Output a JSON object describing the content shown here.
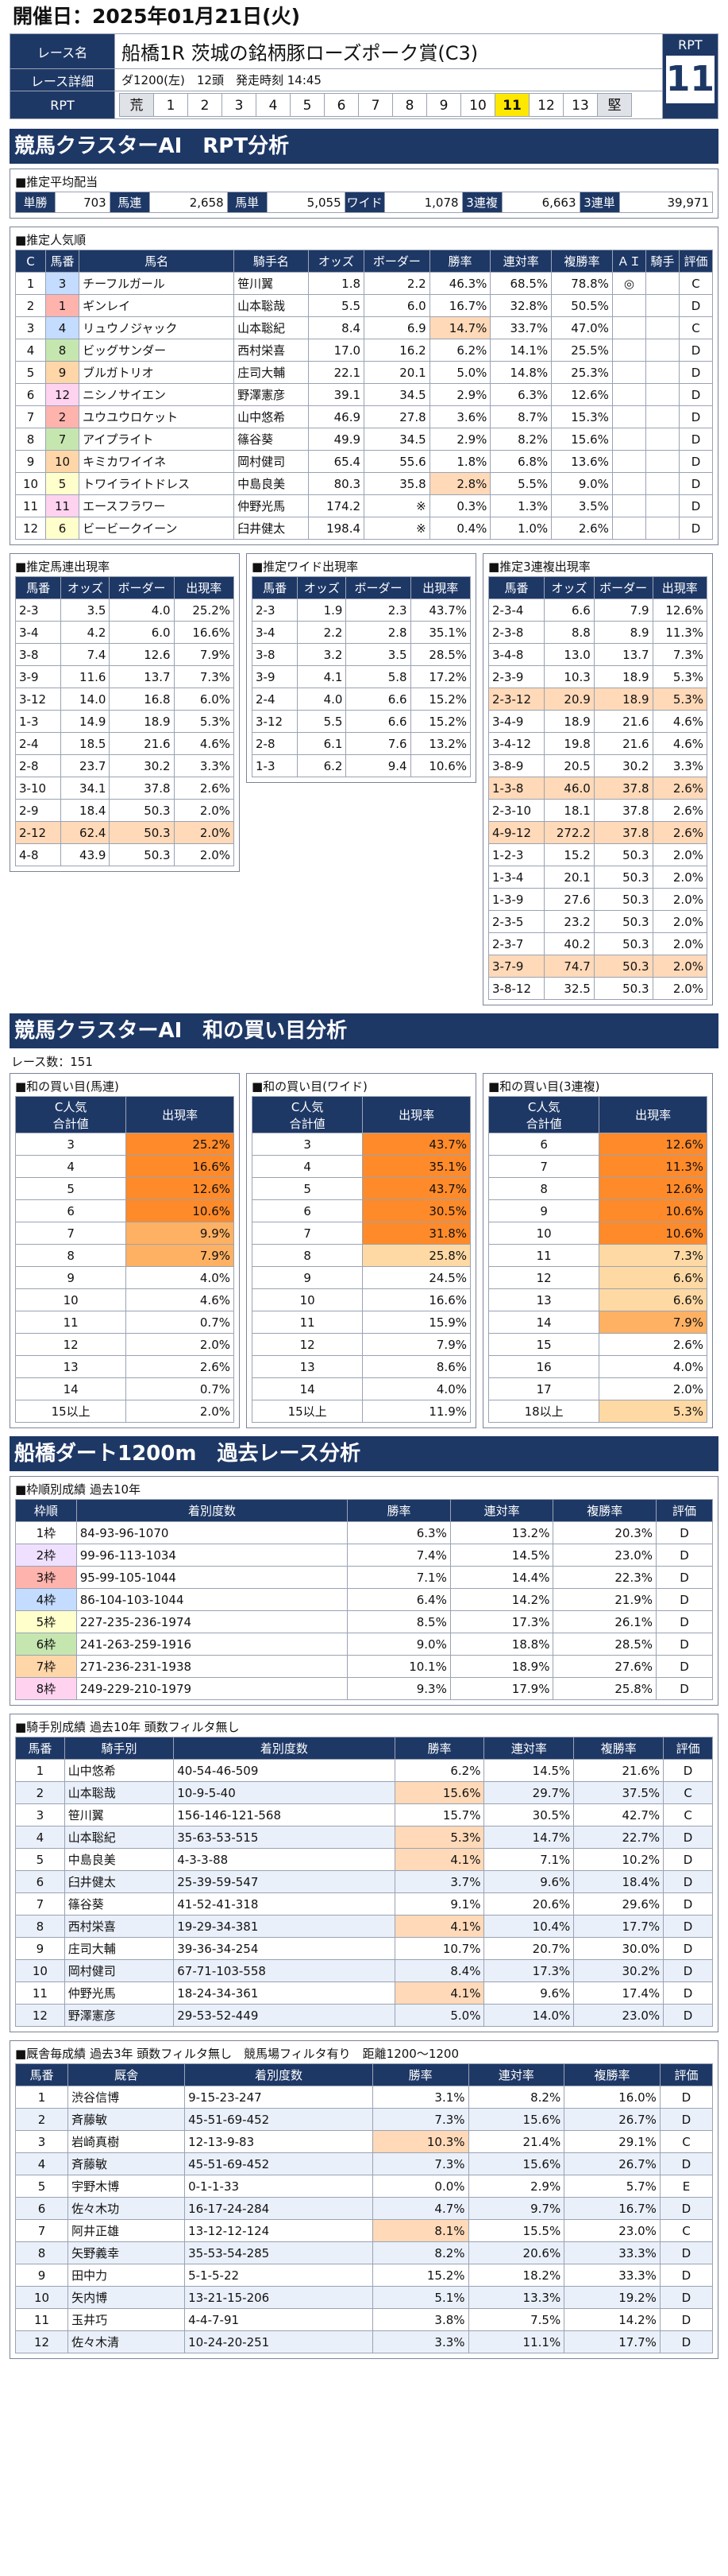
{
  "date_label": "開催日：2025年01月21日(火)",
  "race": {
    "name_label": "レース名",
    "name": "船橋1R 茨城の銘柄豚ローズポーク賞(C3)",
    "detail_label": "レース詳細",
    "detail": "ダ1200(左)　12頭　発走時刻 14:45",
    "rpt_label": "RPT",
    "rpt_value": "11",
    "scale": [
      "荒",
      "1",
      "2",
      "3",
      "4",
      "5",
      "6",
      "7",
      "8",
      "9",
      "10",
      "11",
      "12",
      "13",
      "堅"
    ]
  },
  "ai_title": "競馬クラスターAI　RPT分析",
  "payout": {
    "title": "■推定平均配当",
    "items": [
      [
        "単勝",
        "703"
      ],
      [
        "馬連",
        "2,658"
      ],
      [
        "馬単",
        "5,055"
      ],
      [
        "ワイド",
        "1,078"
      ],
      [
        "3連複",
        "6,663"
      ],
      [
        "3連単",
        "39,971"
      ]
    ]
  },
  "popularity": {
    "title": "■推定人気順",
    "headers": [
      "C",
      "馬番",
      "馬名",
      "騎手名",
      "オッズ",
      "ボーダー",
      "勝率",
      "連対率",
      "複勝率",
      "ＡＩ",
      "騎手",
      "評価"
    ],
    "rows": [
      [
        "1",
        "3",
        "チーフルガール",
        "笹川翼",
        "1.8",
        "2.2",
        "46.3%",
        "68.5%",
        "78.8%",
        "◎",
        "",
        "C"
      ],
      [
        "2",
        "1",
        "ギンレイ",
        "山本聡哉",
        "5.5",
        "6.0",
        "16.7%",
        "32.8%",
        "50.5%",
        "",
        "",
        "D"
      ],
      [
        "3",
        "4",
        "リュウノジャック",
        "山本聡紀",
        "8.4",
        "6.9",
        "14.7%",
        "33.7%",
        "47.0%",
        "",
        "",
        "C"
      ],
      [
        "4",
        "8",
        "ビッグサンダー",
        "西村栄喜",
        "17.0",
        "16.2",
        "6.2%",
        "14.1%",
        "25.5%",
        "",
        "",
        "D"
      ],
      [
        "5",
        "9",
        "ブルガトリオ",
        "庄司大輔",
        "22.1",
        "20.1",
        "5.0%",
        "14.8%",
        "25.3%",
        "",
        "",
        "D"
      ],
      [
        "6",
        "12",
        "ニシノサイエン",
        "野澤憲彦",
        "39.1",
        "34.5",
        "2.9%",
        "6.3%",
        "12.6%",
        "",
        "",
        "D"
      ],
      [
        "7",
        "2",
        "ユウユウロケット",
        "山中悠希",
        "46.9",
        "27.8",
        "3.6%",
        "8.7%",
        "15.3%",
        "",
        "",
        "D"
      ],
      [
        "8",
        "7",
        "アイプライト",
        "篠谷葵",
        "49.9",
        "34.5",
        "2.9%",
        "8.2%",
        "15.6%",
        "",
        "",
        "D"
      ],
      [
        "9",
        "10",
        "キミカワイイネ",
        "岡村健司",
        "65.4",
        "55.6",
        "1.8%",
        "6.8%",
        "13.6%",
        "",
        "",
        "D"
      ],
      [
        "10",
        "5",
        "トワイライトドレス",
        "中島良美",
        "80.3",
        "35.8",
        "2.8%",
        "5.5%",
        "9.0%",
        "",
        "",
        "D"
      ],
      [
        "11",
        "11",
        "エースフラワー",
        "仲野光馬",
        "174.2",
        "※",
        "0.3%",
        "1.3%",
        "3.5%",
        "",
        "",
        "D"
      ],
      [
        "12",
        "6",
        "ビービークイーン",
        "臼井健太",
        "198.4",
        "※",
        "0.4%",
        "1.0%",
        "2.6%",
        "",
        "",
        "D"
      ]
    ]
  },
  "umaren": {
    "title": "■推定馬連出現率",
    "headers": [
      "馬番",
      "オッズ",
      "ボーダー",
      "出現率"
    ],
    "rows": [
      [
        "2-3",
        "3.5",
        "4.0",
        "25.2%"
      ],
      [
        "3-4",
        "4.2",
        "6.0",
        "16.6%"
      ],
      [
        "3-8",
        "7.4",
        "12.6",
        "7.9%"
      ],
      [
        "3-9",
        "11.6",
        "13.7",
        "7.3%"
      ],
      [
        "3-12",
        "14.0",
        "16.8",
        "6.0%"
      ],
      [
        "1-3",
        "14.9",
        "18.9",
        "5.3%"
      ],
      [
        "2-4",
        "18.5",
        "21.6",
        "4.6%"
      ],
      [
        "2-8",
        "23.7",
        "30.2",
        "3.3%"
      ],
      [
        "3-10",
        "34.1",
        "37.8",
        "2.6%"
      ],
      [
        "2-9",
        "18.4",
        "50.3",
        "2.0%"
      ],
      [
        "2-12",
        "62.4",
        "50.3",
        "2.0%"
      ],
      [
        "4-8",
        "43.9",
        "50.3",
        "2.0%"
      ]
    ]
  },
  "wide": {
    "title": "■推定ワイド出現率",
    "headers": [
      "馬番",
      "オッズ",
      "ボーダー",
      "出現率"
    ],
    "rows": [
      [
        "2-3",
        "1.9",
        "2.3",
        "43.7%"
      ],
      [
        "3-4",
        "2.2",
        "2.8",
        "35.1%"
      ],
      [
        "3-8",
        "3.2",
        "3.5",
        "28.5%"
      ],
      [
        "3-9",
        "4.1",
        "5.8",
        "17.2%"
      ],
      [
        "2-4",
        "4.0",
        "6.6",
        "15.2%"
      ],
      [
        "3-12",
        "5.5",
        "6.6",
        "15.2%"
      ],
      [
        "2-8",
        "6.1",
        "7.6",
        "13.2%"
      ],
      [
        "1-3",
        "6.2",
        "9.4",
        "10.6%"
      ]
    ]
  },
  "trio": {
    "title": "■推定3連複出現率",
    "headers": [
      "馬番",
      "オッズ",
      "ボーダー",
      "出現率"
    ],
    "rows": [
      [
        "2-3-4",
        "6.6",
        "7.9",
        "12.6%"
      ],
      [
        "2-3-8",
        "8.8",
        "8.9",
        "11.3%"
      ],
      [
        "3-4-8",
        "13.0",
        "13.7",
        "7.3%"
      ],
      [
        "2-3-9",
        "10.3",
        "18.9",
        "5.3%"
      ],
      [
        "2-3-12",
        "20.9",
        "18.9",
        "5.3%"
      ],
      [
        "3-4-9",
        "18.9",
        "21.6",
        "4.6%"
      ],
      [
        "3-4-12",
        "19.8",
        "21.6",
        "4.6%"
      ],
      [
        "3-8-9",
        "20.5",
        "30.2",
        "3.3%"
      ],
      [
        "1-3-8",
        "46.0",
        "37.8",
        "2.6%"
      ],
      [
        "2-3-10",
        "18.1",
        "37.8",
        "2.6%"
      ],
      [
        "4-9-12",
        "272.2",
        "37.8",
        "2.6%"
      ],
      [
        "1-2-3",
        "15.2",
        "50.3",
        "2.0%"
      ],
      [
        "1-3-4",
        "20.1",
        "50.3",
        "2.0%"
      ],
      [
        "1-3-9",
        "27.6",
        "50.3",
        "2.0%"
      ],
      [
        "2-3-5",
        "23.2",
        "50.3",
        "2.0%"
      ],
      [
        "2-3-7",
        "40.2",
        "50.3",
        "2.0%"
      ],
      [
        "3-7-9",
        "74.7",
        "50.3",
        "2.0%"
      ],
      [
        "3-8-12",
        "32.5",
        "50.3",
        "2.0%"
      ]
    ]
  },
  "wa_title": "競馬クラスターAI　和の買い目分析",
  "race_count": "レース数：151",
  "wa_umaren": {
    "title": "■和の買い目(馬連)",
    "headers": [
      "C人気\n合計値",
      "出現率"
    ],
    "rows": [
      [
        "3",
        "25.2%"
      ],
      [
        "4",
        "16.6%"
      ],
      [
        "5",
        "12.6%"
      ],
      [
        "6",
        "10.6%"
      ],
      [
        "7",
        "9.9%"
      ],
      [
        "8",
        "7.9%"
      ],
      [
        "9",
        "4.0%"
      ],
      [
        "10",
        "4.6%"
      ],
      [
        "11",
        "0.7%"
      ],
      [
        "12",
        "2.0%"
      ],
      [
        "13",
        "2.6%"
      ],
      [
        "14",
        "0.7%"
      ],
      [
        "15以上",
        "2.0%"
      ]
    ]
  },
  "wa_wide": {
    "title": "■和の買い目(ワイド)",
    "headers": [
      "C人気\n合計値",
      "出現率"
    ],
    "rows": [
      [
        "3",
        "43.7%"
      ],
      [
        "4",
        "35.1%"
      ],
      [
        "5",
        "43.7%"
      ],
      [
        "6",
        "30.5%"
      ],
      [
        "7",
        "31.8%"
      ],
      [
        "8",
        "25.8%"
      ],
      [
        "9",
        "24.5%"
      ],
      [
        "10",
        "16.6%"
      ],
      [
        "11",
        "15.9%"
      ],
      [
        "12",
        "7.9%"
      ],
      [
        "13",
        "8.6%"
      ],
      [
        "14",
        "4.0%"
      ],
      [
        "15以上",
        "11.9%"
      ]
    ]
  },
  "wa_trio": {
    "title": "■和の買い目(3連複)",
    "headers": [
      "C人気\n合計値",
      "出現率"
    ],
    "rows": [
      [
        "6",
        "12.6%"
      ],
      [
        "7",
        "11.3%"
      ],
      [
        "8",
        "12.6%"
      ],
      [
        "9",
        "10.6%"
      ],
      [
        "10",
        "10.6%"
      ],
      [
        "11",
        "7.3%"
      ],
      [
        "12",
        "6.6%"
      ],
      [
        "13",
        "6.6%"
      ],
      [
        "14",
        "7.9%"
      ],
      [
        "15",
        "2.6%"
      ],
      [
        "16",
        "4.0%"
      ],
      [
        "17",
        "2.0%"
      ],
      [
        "18以上",
        "5.3%"
      ]
    ]
  },
  "past_title": "船橋ダート1200m　過去レース分析",
  "frame": {
    "title": "■枠順別成績 過去10年",
    "headers": [
      "枠順",
      "着別度数",
      "勝率",
      "連対率",
      "複勝率",
      "評価"
    ],
    "rows": [
      [
        "1枠",
        "84-93-96-1070",
        "6.3%",
        "13.2%",
        "20.3%",
        "D"
      ],
      [
        "2枠",
        "99-96-113-1034",
        "7.4%",
        "14.5%",
        "23.0%",
        "D"
      ],
      [
        "3枠",
        "95-99-105-1044",
        "7.1%",
        "14.4%",
        "22.3%",
        "D"
      ],
      [
        "4枠",
        "86-104-103-1044",
        "6.4%",
        "14.2%",
        "21.9%",
        "D"
      ],
      [
        "5枠",
        "227-235-236-1974",
        "8.5%",
        "17.3%",
        "26.1%",
        "D"
      ],
      [
        "6枠",
        "241-263-259-1916",
        "9.0%",
        "18.8%",
        "28.5%",
        "D"
      ],
      [
        "7枠",
        "271-236-231-1938",
        "10.1%",
        "18.9%",
        "27.6%",
        "D"
      ],
      [
        "8枠",
        "249-229-210-1979",
        "9.3%",
        "17.9%",
        "25.8%",
        "D"
      ]
    ]
  },
  "jockey": {
    "title": "■騎手別成績 過去10年 頭数フィルタ無し",
    "headers": [
      "馬番",
      "騎手別",
      "着別度数",
      "勝率",
      "連対率",
      "複勝率",
      "評価"
    ],
    "rows": [
      [
        "1",
        "山中悠希",
        "40-54-46-509",
        "6.2%",
        "14.5%",
        "21.6%",
        "D"
      ],
      [
        "2",
        "山本聡哉",
        "10-9-5-40",
        "15.6%",
        "29.7%",
        "37.5%",
        "C"
      ],
      [
        "3",
        "笹川翼",
        "156-146-121-568",
        "15.7%",
        "30.5%",
        "42.7%",
        "C"
      ],
      [
        "4",
        "山本聡紀",
        "35-63-53-515",
        "5.3%",
        "14.7%",
        "22.7%",
        "D"
      ],
      [
        "5",
        "中島良美",
        "4-3-3-88",
        "4.1%",
        "7.1%",
        "10.2%",
        "D"
      ],
      [
        "6",
        "臼井健太",
        "25-39-59-547",
        "3.7%",
        "9.6%",
        "18.4%",
        "D"
      ],
      [
        "7",
        "篠谷葵",
        "41-52-41-318",
        "9.1%",
        "20.6%",
        "29.6%",
        "D"
      ],
      [
        "8",
        "西村栄喜",
        "19-29-34-381",
        "4.1%",
        "10.4%",
        "17.7%",
        "D"
      ],
      [
        "9",
        "庄司大輔",
        "39-36-34-254",
        "10.7%",
        "20.7%",
        "30.0%",
        "D"
      ],
      [
        "10",
        "岡村健司",
        "67-71-103-558",
        "8.4%",
        "17.3%",
        "30.2%",
        "D"
      ],
      [
        "11",
        "仲野光馬",
        "18-24-34-361",
        "4.1%",
        "9.6%",
        "17.4%",
        "D"
      ],
      [
        "12",
        "野澤憲彦",
        "29-53-52-449",
        "5.0%",
        "14.0%",
        "23.0%",
        "D"
      ]
    ]
  },
  "trainer": {
    "title": "■厩舎毎成績 過去3年 頭数フィルタ無し　競馬場フィルタ有り　距離1200～1200",
    "headers": [
      "馬番",
      "厩舎",
      "着別度数",
      "勝率",
      "連対率",
      "複勝率",
      "評価"
    ],
    "rows": [
      [
        "1",
        "渋谷信博",
        "9-15-23-247",
        "3.1%",
        "8.2%",
        "16.0%",
        "D"
      ],
      [
        "2",
        "斉藤敏",
        "45-51-69-452",
        "7.3%",
        "15.6%",
        "26.7%",
        "D"
      ],
      [
        "3",
        "岩崎真樹",
        "12-13-9-83",
        "10.3%",
        "21.4%",
        "29.1%",
        "C"
      ],
      [
        "4",
        "斉藤敏",
        "45-51-69-452",
        "7.3%",
        "15.6%",
        "26.7%",
        "D"
      ],
      [
        "5",
        "宇野木博",
        "0-1-1-33",
        "0.0%",
        "2.9%",
        "5.7%",
        "E"
      ],
      [
        "6",
        "佐々木功",
        "16-17-24-284",
        "4.7%",
        "9.7%",
        "16.7%",
        "D"
      ],
      [
        "7",
        "阿井正雄",
        "13-12-12-124",
        "8.1%",
        "15.5%",
        "23.0%",
        "C"
      ],
      [
        "8",
        "矢野義幸",
        "35-53-54-285",
        "8.2%",
        "20.6%",
        "33.3%",
        "D"
      ],
      [
        "9",
        "田中力",
        "5-1-5-22",
        "15.2%",
        "18.2%",
        "33.3%",
        "D"
      ],
      [
        "10",
        "矢内博",
        "13-21-15-206",
        "5.1%",
        "13.3%",
        "19.2%",
        "D"
      ],
      [
        "11",
        "玉井巧",
        "4-4-7-91",
        "3.8%",
        "7.5%",
        "14.2%",
        "D"
      ],
      [
        "12",
        "佐々木清",
        "10-24-20-251",
        "3.3%",
        "11.1%",
        "17.7%",
        "D"
      ]
    ]
  }
}
